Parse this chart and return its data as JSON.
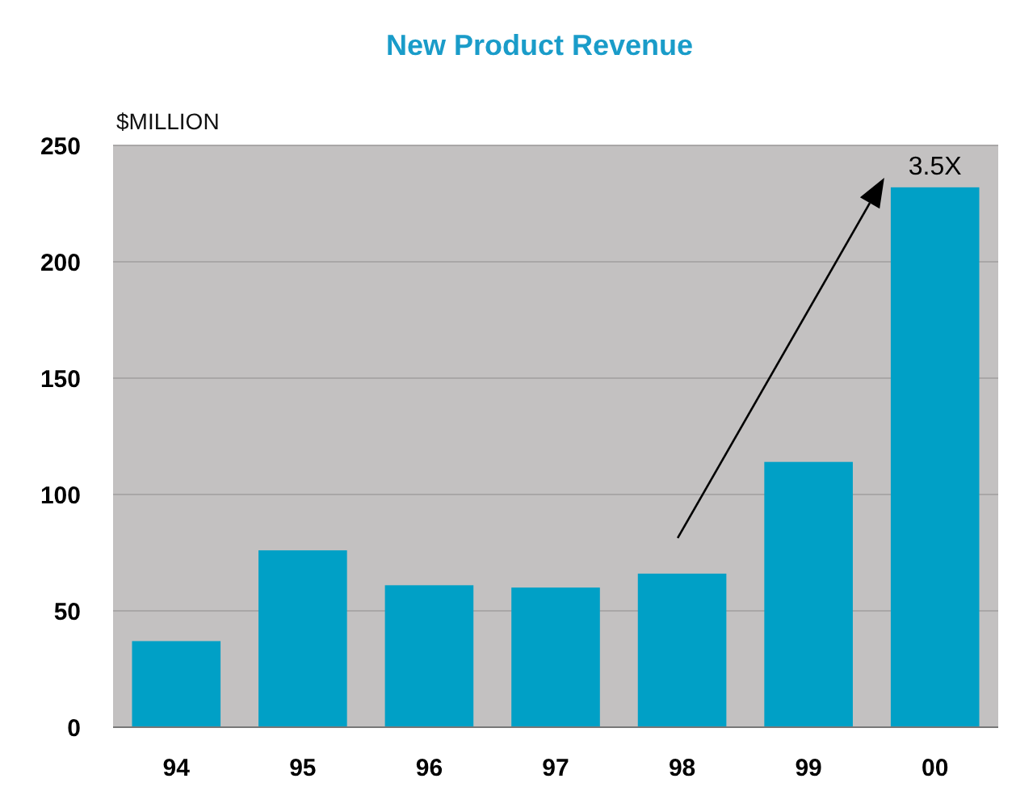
{
  "chart_data": {
    "type": "bar",
    "title": "New Product Revenue",
    "ylabel": "$MILLION",
    "categories": [
      "94",
      "95",
      "96",
      "97",
      "98",
      "99",
      "00"
    ],
    "values": [
      37,
      76,
      61,
      60,
      66,
      114,
      232
    ],
    "color": "#00a0c6",
    "ylim": [
      0,
      250
    ],
    "yticks": [
      0,
      50,
      100,
      150,
      200,
      250
    ],
    "grid": "y",
    "annotations": [
      "3.5X"
    ]
  }
}
